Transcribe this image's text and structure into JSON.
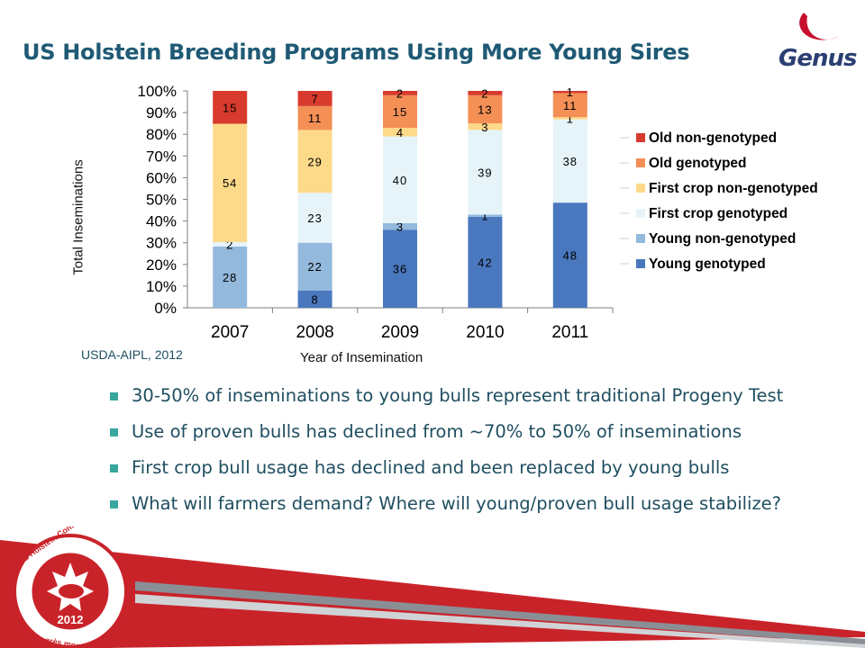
{
  "slide": {
    "title": "US Holstein Breeding Programs Using More Young Sires",
    "source": "USDA-AIPL, 2012",
    "logo_text": "Genus",
    "bullets": [
      "30-50% of inseminations to young bulls represent traditional Progeny Test",
      "Use of proven bulls has declined from ~70% to 50% of inseminations",
      "First crop bull usage has declined and been replaced by young bulls",
      "What will farmers demand?  Where will young/proven bull usage stabilize?"
    ],
    "badge": {
      "top_text": "World Holstein Conference",
      "bottom_text": "Congrès mondial Holstein",
      "year": "2012"
    }
  },
  "colors": {
    "title": "#1f5a75",
    "bullet_mark": "#3aa6a0",
    "logo_red": "#c8102e",
    "logo_blue": "#2b3f73"
  },
  "chart_data": {
    "type": "bar",
    "stacked": true,
    "percent": true,
    "categories": [
      "2007",
      "2008",
      "2009",
      "2010",
      "2011"
    ],
    "xlabel": "Year of Insemination",
    "ylabel": "Total Inseminations",
    "ylim": [
      0,
      100
    ],
    "yticks": [
      "0%",
      "10%",
      "20%",
      "30%",
      "40%",
      "50%",
      "60%",
      "70%",
      "80%",
      "90%",
      "100%"
    ],
    "legend_position": "right",
    "grid": false,
    "series": [
      {
        "name": "Young genotyped",
        "color": "#4a78bf",
        "values": [
          0,
          8,
          36,
          42,
          48
        ]
      },
      {
        "name": "Young non-genotyped",
        "color": "#93b9dd",
        "values": [
          28,
          22,
          3,
          1,
          0
        ]
      },
      {
        "name": "First crop genotyped",
        "color": "#e6f4fa",
        "values": [
          2,
          23,
          40,
          39,
          38
        ]
      },
      {
        "name": "First crop non-genotyped",
        "color": "#fdd98a",
        "values": [
          54,
          29,
          4,
          3,
          1
        ]
      },
      {
        "name": "Old genotyped",
        "color": "#f48f56",
        "values": [
          0,
          11,
          15,
          13,
          11
        ]
      },
      {
        "name": "Old non-genotyped",
        "color": "#d83b2e",
        "values": [
          15,
          7,
          2,
          2,
          1
        ]
      }
    ]
  }
}
